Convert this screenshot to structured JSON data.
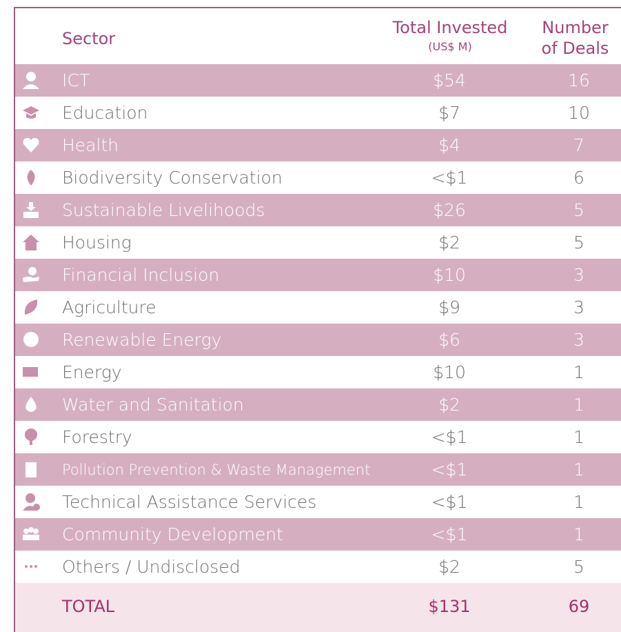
{
  "header": {
    "sector": "Sector",
    "total_invested": "Total Invested",
    "total_invested_unit": "(US$ M)",
    "number_of_deals_1": "Number",
    "number_of_deals_2": "of Deals"
  },
  "rows": [
    [
      "ICT",
      "$54",
      16
    ],
    [
      "Education",
      "$7",
      10
    ],
    [
      "Health",
      "$4",
      7
    ],
    [
      "Biodiversity Conservation",
      "<$1",
      6
    ],
    [
      "Sustainable Livelihoods",
      "$26",
      5
    ],
    [
      "Housing",
      "$2",
      5
    ],
    [
      "Financial Inclusion",
      "$10",
      3
    ],
    [
      "Agriculture",
      "$9",
      3
    ],
    [
      "Renewable Energy",
      "$6",
      3
    ],
    [
      "Energy",
      "$10",
      1
    ],
    [
      "Water and Sanitation",
      "$2",
      1
    ],
    [
      "Forestry",
      "<$1",
      1
    ],
    [
      "Pollution Prevention & Waste Management",
      "<$1",
      1
    ],
    [
      "Technical Assistance Services",
      "<$1",
      1
    ],
    [
      "Community Development",
      "<$1",
      1
    ],
    [
      "Others / Undisclosed",
      "$2",
      5
    ]
  ],
  "total": {
    "label": "TOTAL",
    "invested": "$131",
    "deals": 69
  }
}
